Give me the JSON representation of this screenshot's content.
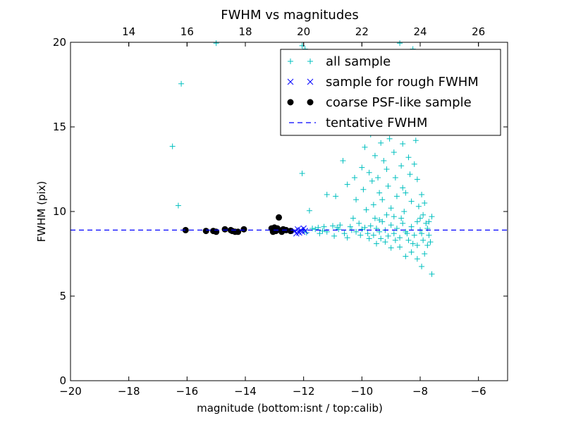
{
  "chart_data": {
    "type": "scatter",
    "title": "FWHM vs magnitudes",
    "xlabel": "magnitude (bottom:isnt / top:calib)",
    "ylabel": "FWHM (pix)",
    "xlim": [
      -20,
      -5
    ],
    "ylim": [
      0,
      20
    ],
    "x_ticks": [
      -20,
      -18,
      -16,
      -14,
      -12,
      -10,
      -8,
      -6
    ],
    "x_tick_labels": [
      "−20",
      "−18",
      "−16",
      "−14",
      "−12",
      "−10",
      "−8",
      "−6"
    ],
    "y_ticks": [
      0,
      5,
      10,
      15,
      20
    ],
    "y_tick_labels": [
      "0",
      "5",
      "10",
      "15",
      "20"
    ],
    "top_axis": {
      "ticks": [
        14,
        16,
        18,
        20,
        22,
        24,
        26
      ],
      "tick_labels": [
        "14",
        "16",
        "18",
        "20",
        "22",
        "24",
        "26"
      ],
      "offset": 32
    },
    "grid": false,
    "legend_position": "top-right",
    "colors": {
      "all_sample": "#00bfbf",
      "rough_sample": "#0000ff",
      "psf_sample": "#000000",
      "tentative_fwhm": "#0000ff"
    },
    "legend": [
      {
        "label": "all sample",
        "marker": "plus"
      },
      {
        "label": "sample for rough FWHM",
        "marker": "x"
      },
      {
        "label": "coarse PSF-like sample",
        "marker": "dot"
      },
      {
        "label": "tentative FWHM",
        "marker": "dashed"
      }
    ],
    "tentative_fwhm": 8.9,
    "series": [
      {
        "name": "all sample",
        "marker": "plus",
        "points": [
          [
            -16.5,
            13.85
          ],
          [
            -16.2,
            17.55
          ],
          [
            -16.3,
            10.35
          ],
          [
            -15.0,
            19.95
          ],
          [
            -12.05,
            19.8
          ],
          [
            -11.95,
            19.6
          ],
          [
            -12.05,
            12.25
          ],
          [
            -11.8,
            10.05
          ],
          [
            -11.2,
            11.0
          ],
          [
            -11.15,
            14.65
          ],
          [
            -10.65,
            13.0
          ],
          [
            -10.5,
            11.6
          ],
          [
            -10.9,
            10.9
          ],
          [
            -11.5,
            9.05
          ],
          [
            -11.2,
            8.8
          ],
          [
            -10.8,
            8.95
          ],
          [
            -10.6,
            8.7
          ],
          [
            -10.4,
            9.1
          ],
          [
            -10.2,
            8.8
          ],
          [
            -10.0,
            8.95
          ],
          [
            -11.0,
            9.15
          ],
          [
            -11.35,
            8.85
          ],
          [
            -10.75,
            9.2
          ],
          [
            -10.1,
            9.3
          ],
          [
            -9.9,
            9.05
          ],
          [
            -9.8,
            8.7
          ],
          [
            -9.7,
            9.15
          ],
          [
            -9.6,
            8.6
          ],
          [
            -9.5,
            9.0
          ],
          [
            -9.4,
            8.8
          ],
          [
            -9.3,
            9.4
          ],
          [
            -9.2,
            8.9
          ],
          [
            -9.1,
            8.55
          ],
          [
            -9.0,
            9.2
          ],
          [
            -8.9,
            8.7
          ],
          [
            -8.8,
            9.0
          ],
          [
            -8.7,
            8.45
          ],
          [
            -8.6,
            9.3
          ],
          [
            -8.5,
            8.8
          ],
          [
            -8.4,
            8.3
          ],
          [
            -8.3,
            9.1
          ],
          [
            -8.2,
            8.6
          ],
          [
            -8.1,
            8.0
          ],
          [
            -8.0,
            8.9
          ],
          [
            -7.9,
            8.3
          ],
          [
            -7.85,
            7.5
          ],
          [
            -7.75,
            8.0
          ],
          [
            -7.7,
            8.6
          ],
          [
            -7.6,
            6.3
          ],
          [
            -7.95,
            6.75
          ],
          [
            -8.1,
            7.2
          ],
          [
            -8.3,
            7.6
          ],
          [
            -8.5,
            7.35
          ],
          [
            -8.7,
            7.9
          ],
          [
            -9.0,
            7.85
          ],
          [
            -9.2,
            8.2
          ],
          [
            -9.5,
            8.1
          ],
          [
            -10.3,
            9.6
          ],
          [
            -10.25,
            12.0
          ],
          [
            -10.2,
            10.7
          ],
          [
            -10.0,
            12.6
          ],
          [
            -9.95,
            11.3
          ],
          [
            -9.9,
            13.8
          ],
          [
            -9.85,
            10.1
          ],
          [
            -9.75,
            12.3
          ],
          [
            -9.7,
            14.55
          ],
          [
            -9.65,
            11.8
          ],
          [
            -9.6,
            10.4
          ],
          [
            -9.55,
            13.3
          ],
          [
            -9.5,
            15.0
          ],
          [
            -9.45,
            12.0
          ],
          [
            -9.4,
            11.1
          ],
          [
            -9.35,
            14.05
          ],
          [
            -9.3,
            10.7
          ],
          [
            -9.25,
            13.0
          ],
          [
            -9.2,
            15.8
          ],
          [
            -9.15,
            12.5
          ],
          [
            -9.1,
            11.5
          ],
          [
            -9.05,
            14.3
          ],
          [
            -9.0,
            10.2
          ],
          [
            -8.95,
            16.5
          ],
          [
            -8.9,
            13.5
          ],
          [
            -8.85,
            12.0
          ],
          [
            -8.8,
            10.9
          ],
          [
            -8.75,
            17.3
          ],
          [
            -8.7,
            14.8
          ],
          [
            -8.65,
            12.7
          ],
          [
            -8.6,
            11.4
          ],
          [
            -8.55,
            10.0
          ],
          [
            -8.5,
            18.4
          ],
          [
            -8.45,
            15.5
          ],
          [
            -8.4,
            13.2
          ],
          [
            -8.35,
            12.2
          ],
          [
            -8.3,
            10.6
          ],
          [
            -8.25,
            19.6
          ],
          [
            -8.2,
            16.8
          ],
          [
            -8.15,
            14.2
          ],
          [
            -8.1,
            11.9
          ],
          [
            -8.05,
            10.3
          ],
          [
            -8.0,
            9.6
          ],
          [
            -7.95,
            11.0
          ],
          [
            -7.9,
            9.8
          ],
          [
            -7.85,
            10.5
          ],
          [
            -7.8,
            9.3
          ],
          [
            -7.75,
            9.0
          ],
          [
            -7.7,
            9.4
          ],
          [
            -7.65,
            8.2
          ],
          [
            -7.6,
            9.7
          ],
          [
            -8.7,
            19.95
          ],
          [
            -9.0,
            18.9
          ],
          [
            -8.4,
            17.8
          ],
          [
            -8.8,
            16.0
          ],
          [
            -9.3,
            16.7
          ],
          [
            -8.3,
            15.1
          ],
          [
            -8.6,
            14.0
          ],
          [
            -8.2,
            12.8
          ],
          [
            -8.5,
            11.1
          ],
          [
            -8.9,
            9.7
          ],
          [
            -9.4,
            9.5
          ],
          [
            -8.1,
            9.4
          ],
          [
            -7.95,
            8.7
          ],
          [
            -8.25,
            8.1
          ],
          [
            -8.45,
            8.7
          ],
          [
            -8.65,
            9.6
          ],
          [
            -8.85,
            8.3
          ],
          [
            -9.15,
            9.8
          ],
          [
            -9.35,
            8.4
          ],
          [
            -9.55,
            9.6
          ],
          [
            -9.75,
            8.4
          ],
          [
            -10.05,
            8.6
          ],
          [
            -10.5,
            8.45
          ],
          [
            -10.95,
            8.55
          ],
          [
            -11.45,
            8.7
          ],
          [
            -11.7,
            9.0
          ],
          [
            -12.0,
            8.9
          ],
          [
            -11.9,
            8.75
          ],
          [
            -11.6,
            8.95
          ],
          [
            -11.3,
            9.1
          ],
          [
            -10.85,
            9.05
          ],
          [
            -10.35,
            8.9
          ]
        ]
      },
      {
        "name": "sample for rough FWHM",
        "marker": "x",
        "points": [
          [
            -12.3,
            8.85
          ],
          [
            -12.2,
            8.95
          ],
          [
            -12.15,
            8.75
          ],
          [
            -12.1,
            8.9
          ],
          [
            -12.05,
            8.8
          ],
          [
            -12.0,
            9.0
          ],
          [
            -12.25,
            8.7
          ],
          [
            -11.95,
            8.85
          ]
        ]
      },
      {
        "name": "coarse PSF-like sample",
        "marker": "dot",
        "points": [
          [
            -16.05,
            8.9
          ],
          [
            -15.35,
            8.85
          ],
          [
            -15.1,
            8.85
          ],
          [
            -15.0,
            8.8
          ],
          [
            -14.7,
            8.95
          ],
          [
            -14.5,
            8.9
          ],
          [
            -14.35,
            8.8
          ],
          [
            -14.25,
            8.8
          ],
          [
            -14.05,
            8.95
          ],
          [
            -13.1,
            9.0
          ],
          [
            -13.05,
            8.8
          ],
          [
            -12.95,
            8.85
          ],
          [
            -12.9,
            9.0
          ],
          [
            -12.85,
            9.65
          ],
          [
            -12.75,
            8.8
          ],
          [
            -12.6,
            8.9
          ],
          [
            -12.45,
            8.85
          ],
          [
            -13.0,
            9.05
          ],
          [
            -14.45,
            8.85
          ],
          [
            -12.7,
            8.95
          ]
        ]
      }
    ]
  }
}
